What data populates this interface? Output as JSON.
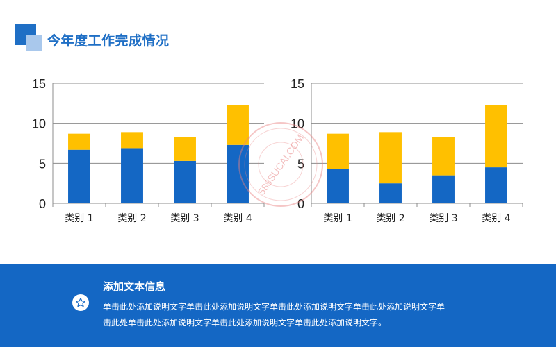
{
  "title": "今年度工作完成情况",
  "colors": {
    "series1": "#1467c4",
    "series2": "#ffc000",
    "accent": "#1f6fc5",
    "footer": "#1467c4"
  },
  "chart_data": [
    {
      "type": "bar",
      "stacked": true,
      "categories": [
        "类别 1",
        "类别 2",
        "类别 3",
        "类别 4"
      ],
      "series": [
        {
          "values": [
            6.7,
            6.9,
            5.3,
            7.3
          ]
        },
        {
          "values": [
            2.0,
            2.0,
            3.0,
            5.0
          ]
        }
      ],
      "yticks": [
        "0",
        "5",
        "10",
        "15"
      ],
      "ylim": [
        0,
        15
      ],
      "grid": true,
      "legend": "none"
    },
    {
      "type": "bar",
      "stacked": true,
      "categories": [
        "类别 1",
        "类别 2",
        "类别 3",
        "类别 4"
      ],
      "series": [
        {
          "values": [
            4.3,
            2.5,
            3.5,
            4.5
          ]
        },
        {
          "values": [
            4.4,
            6.4,
            4.8,
            7.8
          ]
        }
      ],
      "yticks": [
        "0",
        "5",
        "10",
        "15"
      ],
      "ylim": [
        0,
        15
      ],
      "grid": true,
      "legend": "none"
    }
  ],
  "watermark": {
    "text": "588SUCAI.COM"
  },
  "footer": {
    "icon": "star-icon",
    "title": "添加文本信息",
    "line1": "单击此处添加说明文字单击此处添加说明文字单击此处添加说明文字单击此处添加说明文字单",
    "line2": "击此处单击此处添加说明文字单击此处添加说明文字单击此处添加说明文字。"
  }
}
